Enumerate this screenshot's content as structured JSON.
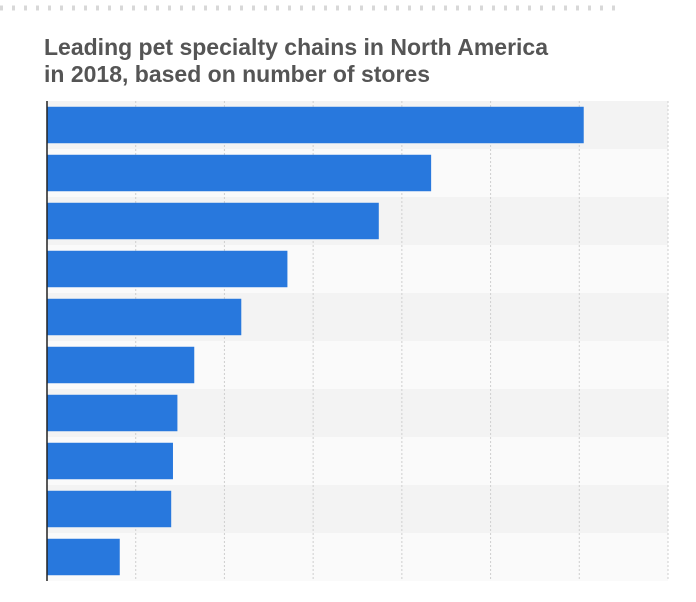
{
  "chart_data": {
    "type": "bar",
    "orientation": "horizontal",
    "title": "Leading pet specialty chains in North America in 2018, based on number of stores",
    "categories": [
      null,
      null,
      null,
      null,
      null,
      null,
      null,
      null,
      null,
      null
    ],
    "values": [
      6.05,
      4.33,
      3.74,
      2.71,
      2.19,
      1.66,
      1.47,
      1.42,
      1.4,
      0.82
    ],
    "color": "#2878dd",
    "xlim": [
      0,
      7
    ],
    "xticks": [
      0,
      1,
      2,
      3,
      4,
      5,
      6,
      7
    ],
    "grid": true
  }
}
